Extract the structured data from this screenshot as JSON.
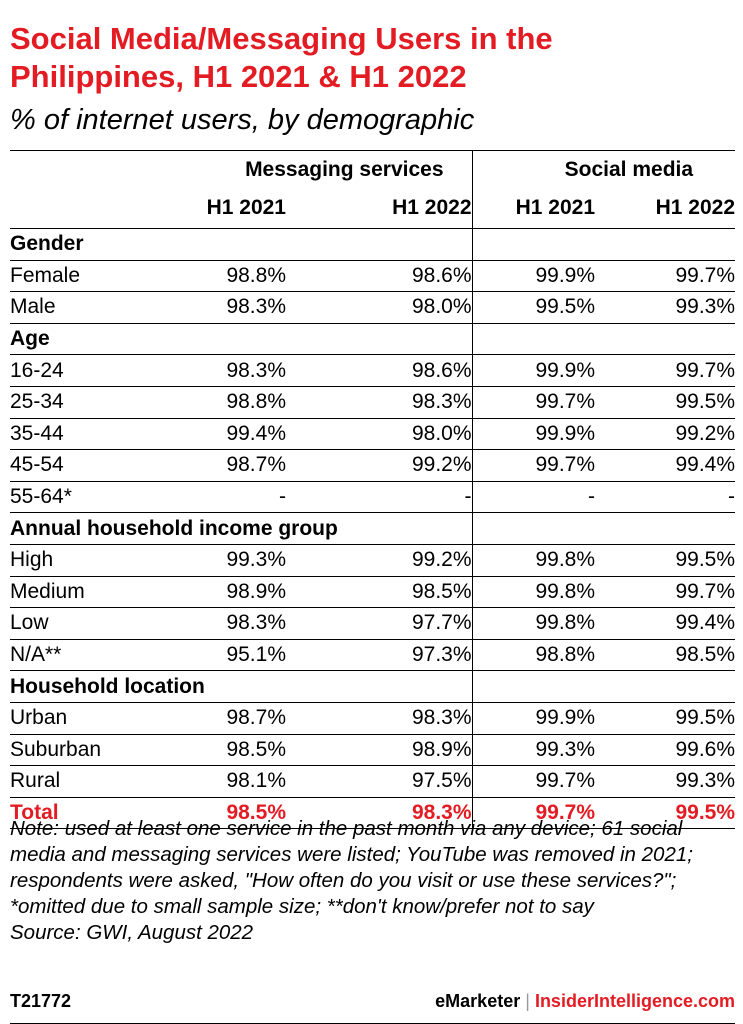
{
  "title": "Social Media/Messaging Users in the Philippines, H1 2021 & H1 2022",
  "subtitle": "% of internet users, by demographic",
  "groups": [
    "Messaging services",
    "Social media"
  ],
  "periods": [
    "H1 2021",
    "H1 2022",
    "H1 2021",
    "H1 2022"
  ],
  "chart_data": {
    "type": "table",
    "title": "Social Media/Messaging Users in the Philippines, H1 2021 & H1 2022",
    "subtitle": "% of internet users, by demographic",
    "columns": [
      "Messaging services H1 2021",
      "Messaging services H1 2022",
      "Social media H1 2021",
      "Social media H1 2022"
    ],
    "sections": [
      {
        "name": "Gender",
        "rows": [
          {
            "label": "Female",
            "values": [
              "98.8%",
              "98.6%",
              "99.9%",
              "99.7%"
            ]
          },
          {
            "label": "Male",
            "values": [
              "98.3%",
              "98.0%",
              "99.5%",
              "99.3%"
            ]
          }
        ]
      },
      {
        "name": "Age",
        "rows": [
          {
            "label": "16-24",
            "values": [
              "98.3%",
              "98.6%",
              "99.9%",
              "99.7%"
            ]
          },
          {
            "label": "25-34",
            "values": [
              "98.8%",
              "98.3%",
              "99.7%",
              "99.5%"
            ]
          },
          {
            "label": "35-44",
            "values": [
              "99.4%",
              "98.0%",
              "99.9%",
              "99.2%"
            ]
          },
          {
            "label": "45-54",
            "values": [
              "98.7%",
              "99.2%",
              "99.7%",
              "99.4%"
            ]
          },
          {
            "label": "55-64*",
            "values": [
              "-",
              "-",
              "-",
              "-"
            ]
          }
        ]
      },
      {
        "name": "Annual household income group",
        "rows": [
          {
            "label": "High",
            "values": [
              "99.3%",
              "99.2%",
              "99.8%",
              "99.5%"
            ]
          },
          {
            "label": "Medium",
            "values": [
              "98.9%",
              "98.5%",
              "99.8%",
              "99.7%"
            ]
          },
          {
            "label": "Low",
            "values": [
              "98.3%",
              "97.7%",
              "99.8%",
              "99.4%"
            ]
          },
          {
            "label": "N/A**",
            "values": [
              "95.1%",
              "97.3%",
              "98.8%",
              "98.5%"
            ]
          }
        ]
      },
      {
        "name": "Household location",
        "rows": [
          {
            "label": "Urban",
            "values": [
              "98.7%",
              "98.3%",
              "99.9%",
              "99.5%"
            ]
          },
          {
            "label": "Suburban",
            "values": [
              "98.5%",
              "98.9%",
              "99.3%",
              "99.6%"
            ]
          },
          {
            "label": "Rural",
            "values": [
              "98.1%",
              "97.5%",
              "99.7%",
              "99.3%"
            ]
          }
        ]
      }
    ],
    "total": {
      "label": "Total",
      "values": [
        "98.5%",
        "98.3%",
        "99.7%",
        "99.5%"
      ]
    }
  },
  "notes": "Note: used at least one service in the past month via any device; 61 social media and messaging services were listed; YouTube was removed in 2021; respondents were asked, \"How often do you visit or use these services?\"; *omitted due to small sample size; **don't know/prefer not to say",
  "source": "Source: GWI, August 2022",
  "footer": {
    "id": "T21772",
    "brand1": "eMarketer",
    "separator": "|",
    "brand2": "InsiderIntelligence.com"
  },
  "colors": {
    "accent": "#e31b23"
  }
}
